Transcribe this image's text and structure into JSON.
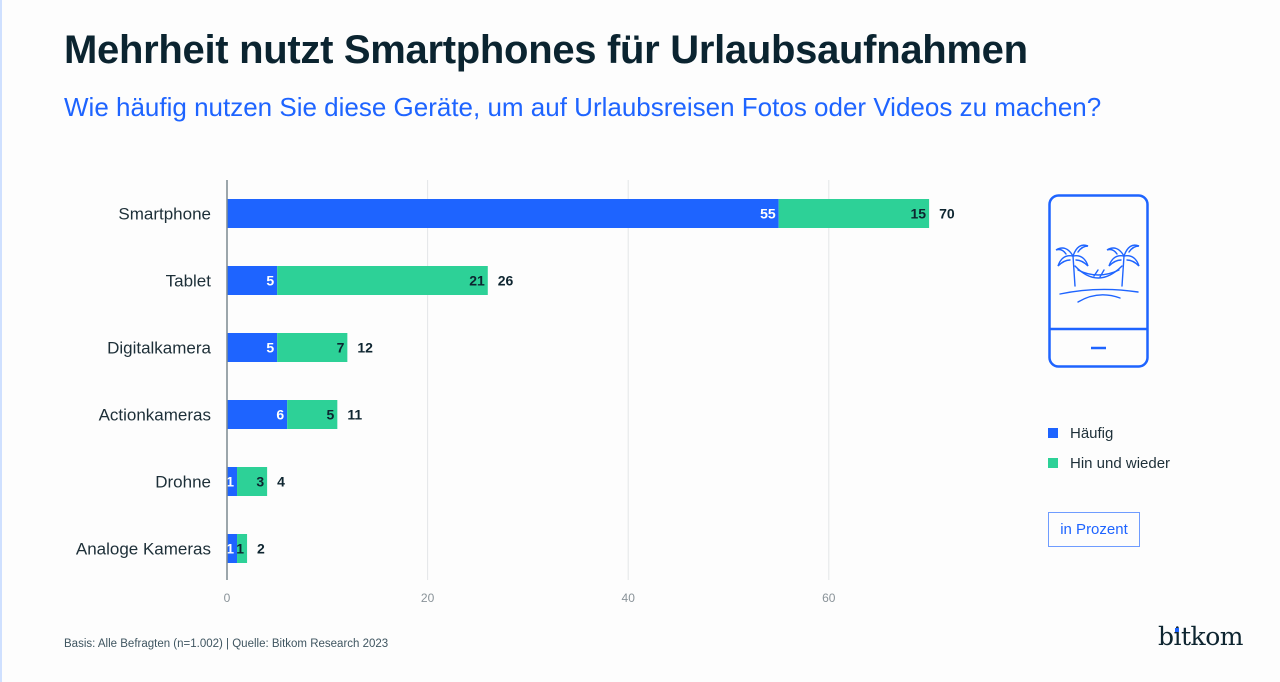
{
  "header": {
    "title": "Mehrheit nutzt Smartphones für Urlaubsaufnahmen",
    "subtitle": "Wie häufig nutzen Sie diese Geräte, um auf Urlaubsreisen Fotos oder Videos zu machen?"
  },
  "colors": {
    "haeufig": "#1e64ff",
    "hin_und_wieder": "#2dd197",
    "accent": "#1e64ff",
    "text_dark": "#0e2530",
    "grid": "#e3e6e8",
    "axis": "#7d8a90"
  },
  "chart_data": {
    "type": "bar",
    "orientation": "horizontal",
    "stacked": true,
    "title": "Mehrheit nutzt Smartphones für Urlaubsaufnahmen",
    "subtitle": "Wie häufig nutzen Sie diese Geräte, um auf Urlaubsreisen Fotos oder Videos zu machen?",
    "categories": [
      "Smartphone",
      "Tablet",
      "Digitalkamera",
      "Actionkameras",
      "Drohne",
      "Analoge Kameras"
    ],
    "series": [
      {
        "name": "Häufig",
        "values": [
          55,
          5,
          5,
          6,
          1,
          1
        ]
      },
      {
        "name": "Hin und wieder",
        "values": [
          15,
          21,
          7,
          5,
          3,
          1
        ]
      }
    ],
    "totals": [
      70,
      26,
      12,
      11,
      4,
      2
    ],
    "xlabel": "",
    "ylabel": "",
    "xlim": [
      0,
      70
    ],
    "xticks": [
      0,
      20,
      40,
      60
    ],
    "grid": true,
    "legend_position": "right",
    "unit": "in Prozent"
  },
  "legend": {
    "items": [
      {
        "label": "Häufig"
      },
      {
        "label": "Hin und wieder"
      }
    ]
  },
  "unit_label": "in Prozent",
  "icon": {
    "name": "smartphone-palm-hammock-icon"
  },
  "footer": {
    "note": "Basis: Alle Befragten (n=1.002) | Quelle: Bitkom Research 2023",
    "logo": "bitkom"
  }
}
